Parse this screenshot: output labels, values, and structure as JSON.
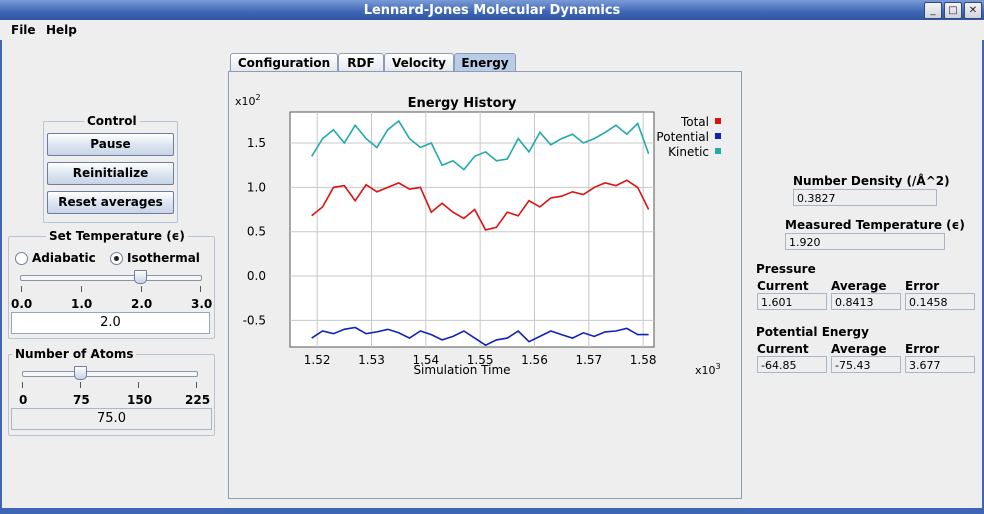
{
  "window": {
    "title": "Lennard-Jones Molecular Dynamics",
    "buttons": [
      "_",
      "□",
      "✕"
    ]
  },
  "menu": [
    "File",
    "Help"
  ],
  "control": {
    "title": "Control",
    "pause": "Pause",
    "reinitialize": "Reinitialize",
    "reset": "Reset averages"
  },
  "temperature": {
    "title": "Set Temperature (ϵ)",
    "adiabatic": "Adiabatic",
    "isothermal": "Isothermal",
    "selected": "Isothermal",
    "ticks": [
      "0.0",
      "1.0",
      "2.0",
      "3.0"
    ],
    "slider_fraction": 0.6667,
    "value": "2.0"
  },
  "atoms": {
    "title": "Number of Atoms",
    "ticks": [
      "0",
      "75",
      "150",
      "225"
    ],
    "slider_fraction": 0.3333,
    "value": "75.0"
  },
  "tabs": [
    "Configuration",
    "RDF",
    "Velocity",
    "Energy"
  ],
  "active_tab": "Energy",
  "stats": {
    "density_label": "Number Density (/Å^2)",
    "density_value": "0.3827",
    "temp_label": "Measured Temperature (ϵ)",
    "temp_value": "1.920",
    "pressure_title": "Pressure",
    "pe_title": "Potential Energy",
    "col_current": "Current",
    "col_average": "Average",
    "col_error": "Error",
    "pressure": {
      "current": "1.601",
      "average": "0.8413",
      "error": "0.1458"
    },
    "pe": {
      "current": "-64.85",
      "average": "-75.43",
      "error": "3.677"
    }
  },
  "chart_data": {
    "type": "line",
    "title": "Energy History",
    "xlabel": "Simulation Time",
    "ylabel": "",
    "x_scale": "x10^3",
    "y_scale": "x10^2",
    "x_scale_label": "x10",
    "x_scale_exp": "3",
    "y_scale_label": "x10",
    "y_scale_exp": "2",
    "xlim": [
      1.515,
      1.582
    ],
    "ylim": [
      -0.8,
      1.85
    ],
    "xticks": [
      1.52,
      1.53,
      1.54,
      1.55,
      1.56,
      1.57,
      1.58
    ],
    "xtick_labels": [
      "1.52",
      "1.53",
      "1.54",
      "1.55",
      "1.56",
      "1.57",
      "1.58"
    ],
    "yticks": [
      -0.5,
      0.0,
      0.5,
      1.0,
      1.5
    ],
    "ytick_labels": [
      "-0.5",
      "0.0",
      "0.5",
      "1.0",
      "1.5"
    ],
    "grid": true,
    "legend_position": "top-right",
    "x": [
      1.519,
      1.521,
      1.523,
      1.525,
      1.527,
      1.529,
      1.531,
      1.533,
      1.535,
      1.537,
      1.539,
      1.541,
      1.543,
      1.545,
      1.547,
      1.549,
      1.551,
      1.553,
      1.555,
      1.557,
      1.559,
      1.561,
      1.563,
      1.565,
      1.567,
      1.569,
      1.571,
      1.573,
      1.575,
      1.577,
      1.579,
      1.581
    ],
    "series": [
      {
        "name": "Total",
        "color": "#dd1111",
        "values": [
          0.68,
          0.78,
          1.0,
          1.02,
          0.85,
          1.03,
          0.95,
          1.0,
          1.05,
          0.98,
          1.0,
          0.72,
          0.82,
          0.72,
          0.65,
          0.75,
          0.52,
          0.55,
          0.72,
          0.68,
          0.85,
          0.78,
          0.88,
          0.9,
          0.95,
          0.92,
          1.0,
          1.05,
          1.02,
          1.08,
          1.0,
          0.75
        ]
      },
      {
        "name": "Potential",
        "color": "#1122bb",
        "values": [
          -0.7,
          -0.62,
          -0.65,
          -0.6,
          -0.58,
          -0.65,
          -0.63,
          -0.6,
          -0.64,
          -0.7,
          -0.62,
          -0.66,
          -0.72,
          -0.68,
          -0.62,
          -0.7,
          -0.78,
          -0.72,
          -0.7,
          -0.62,
          -0.74,
          -0.68,
          -0.62,
          -0.66,
          -0.7,
          -0.64,
          -0.68,
          -0.63,
          -0.62,
          -0.59,
          -0.66,
          -0.66
        ]
      },
      {
        "name": "Kinetic",
        "color": "#22aaaa",
        "values": [
          1.35,
          1.55,
          1.65,
          1.5,
          1.7,
          1.55,
          1.45,
          1.65,
          1.75,
          1.55,
          1.45,
          1.5,
          1.25,
          1.3,
          1.2,
          1.35,
          1.4,
          1.3,
          1.32,
          1.55,
          1.4,
          1.62,
          1.48,
          1.55,
          1.6,
          1.5,
          1.55,
          1.62,
          1.7,
          1.6,
          1.72,
          1.38
        ]
      }
    ]
  }
}
